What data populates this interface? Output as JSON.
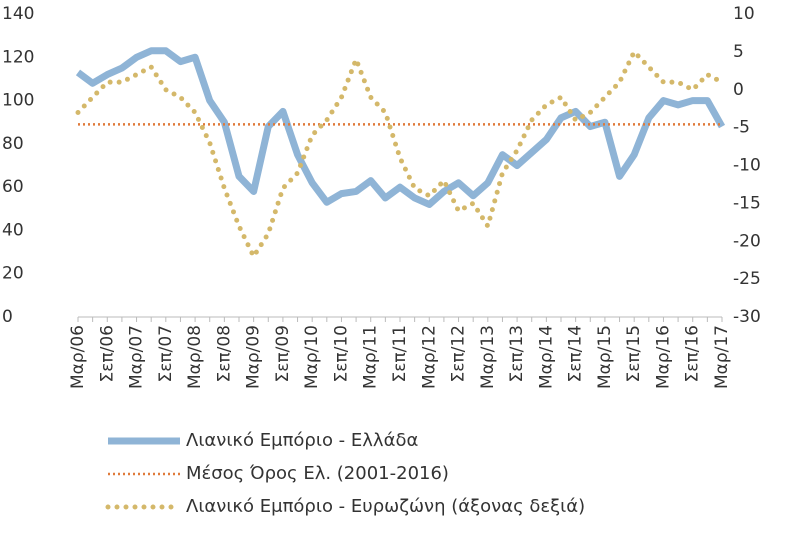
{
  "chart_data": {
    "type": "line",
    "categories": [
      "Μαρ/06",
      null,
      "Σεπ/06",
      null,
      "Μαρ/07",
      null,
      "Σεπ/07",
      null,
      "Μαρ/08",
      null,
      "Σεπ/08",
      null,
      "Μαρ/09",
      null,
      "Σεπ/09",
      null,
      "Μαρ/10",
      null,
      "Σεπ/10",
      null,
      "Μαρ/11",
      null,
      "Σεπ/11",
      null,
      "Μαρ/12",
      null,
      "Σεπ/12",
      null,
      "Μαρ/13",
      null,
      "Σεπ/13",
      null,
      "Μαρ/14",
      null,
      "Σεπ/14",
      null,
      "Μαρ/15",
      null,
      "Σεπ/15",
      null,
      "Μαρ/16",
      null,
      "Σεπ/16",
      null,
      "Μαρ/17"
    ],
    "series": [
      {
        "name": "Λιανικό Εμπόριο  - Ελλάδα",
        "color": "#8fb4d6",
        "axis": "y",
        "values": [
          113,
          108,
          112,
          115,
          120,
          123,
          123,
          118,
          120,
          100,
          90,
          65,
          58,
          88,
          95,
          75,
          62,
          53,
          57,
          58,
          63,
          55,
          60,
          55,
          52,
          58,
          62,
          56,
          62,
          75,
          70,
          76,
          82,
          92,
          95,
          88,
          90,
          65,
          75,
          92,
          100,
          98,
          100,
          100,
          88
        ]
      },
      {
        "name": "Μέσος Όρος Ελ. (2001-2016)",
        "color": "#e07a3a",
        "axis": "y",
        "value": 89
      },
      {
        "name": "Λιανικό Εμπόριο - Ευρωζώνη (άξονας δεξιά)",
        "color": "#d4b86a",
        "axis": "y2",
        "values": [
          -3,
          -1,
          1,
          1,
          2,
          3,
          0,
          -1,
          -3,
          -7,
          -13,
          -18,
          -22,
          -19,
          -13,
          -11,
          -6,
          -4,
          -1,
          4,
          -1,
          -3,
          -9,
          -13,
          -14,
          -12,
          -16,
          -15,
          -18,
          -11,
          -8,
          -4,
          -2,
          -1,
          -4,
          -3,
          -1,
          1,
          5,
          3,
          1,
          1,
          0,
          2,
          1
        ]
      }
    ],
    "ylim": [
      0,
      140
    ],
    "yticks": [
      0,
      20,
      40,
      60,
      80,
      100,
      120,
      140
    ],
    "y2lim": [
      -30,
      10
    ],
    "y2ticks": [
      -30,
      -25,
      -20,
      -15,
      -10,
      -5,
      0,
      5,
      10
    ]
  }
}
